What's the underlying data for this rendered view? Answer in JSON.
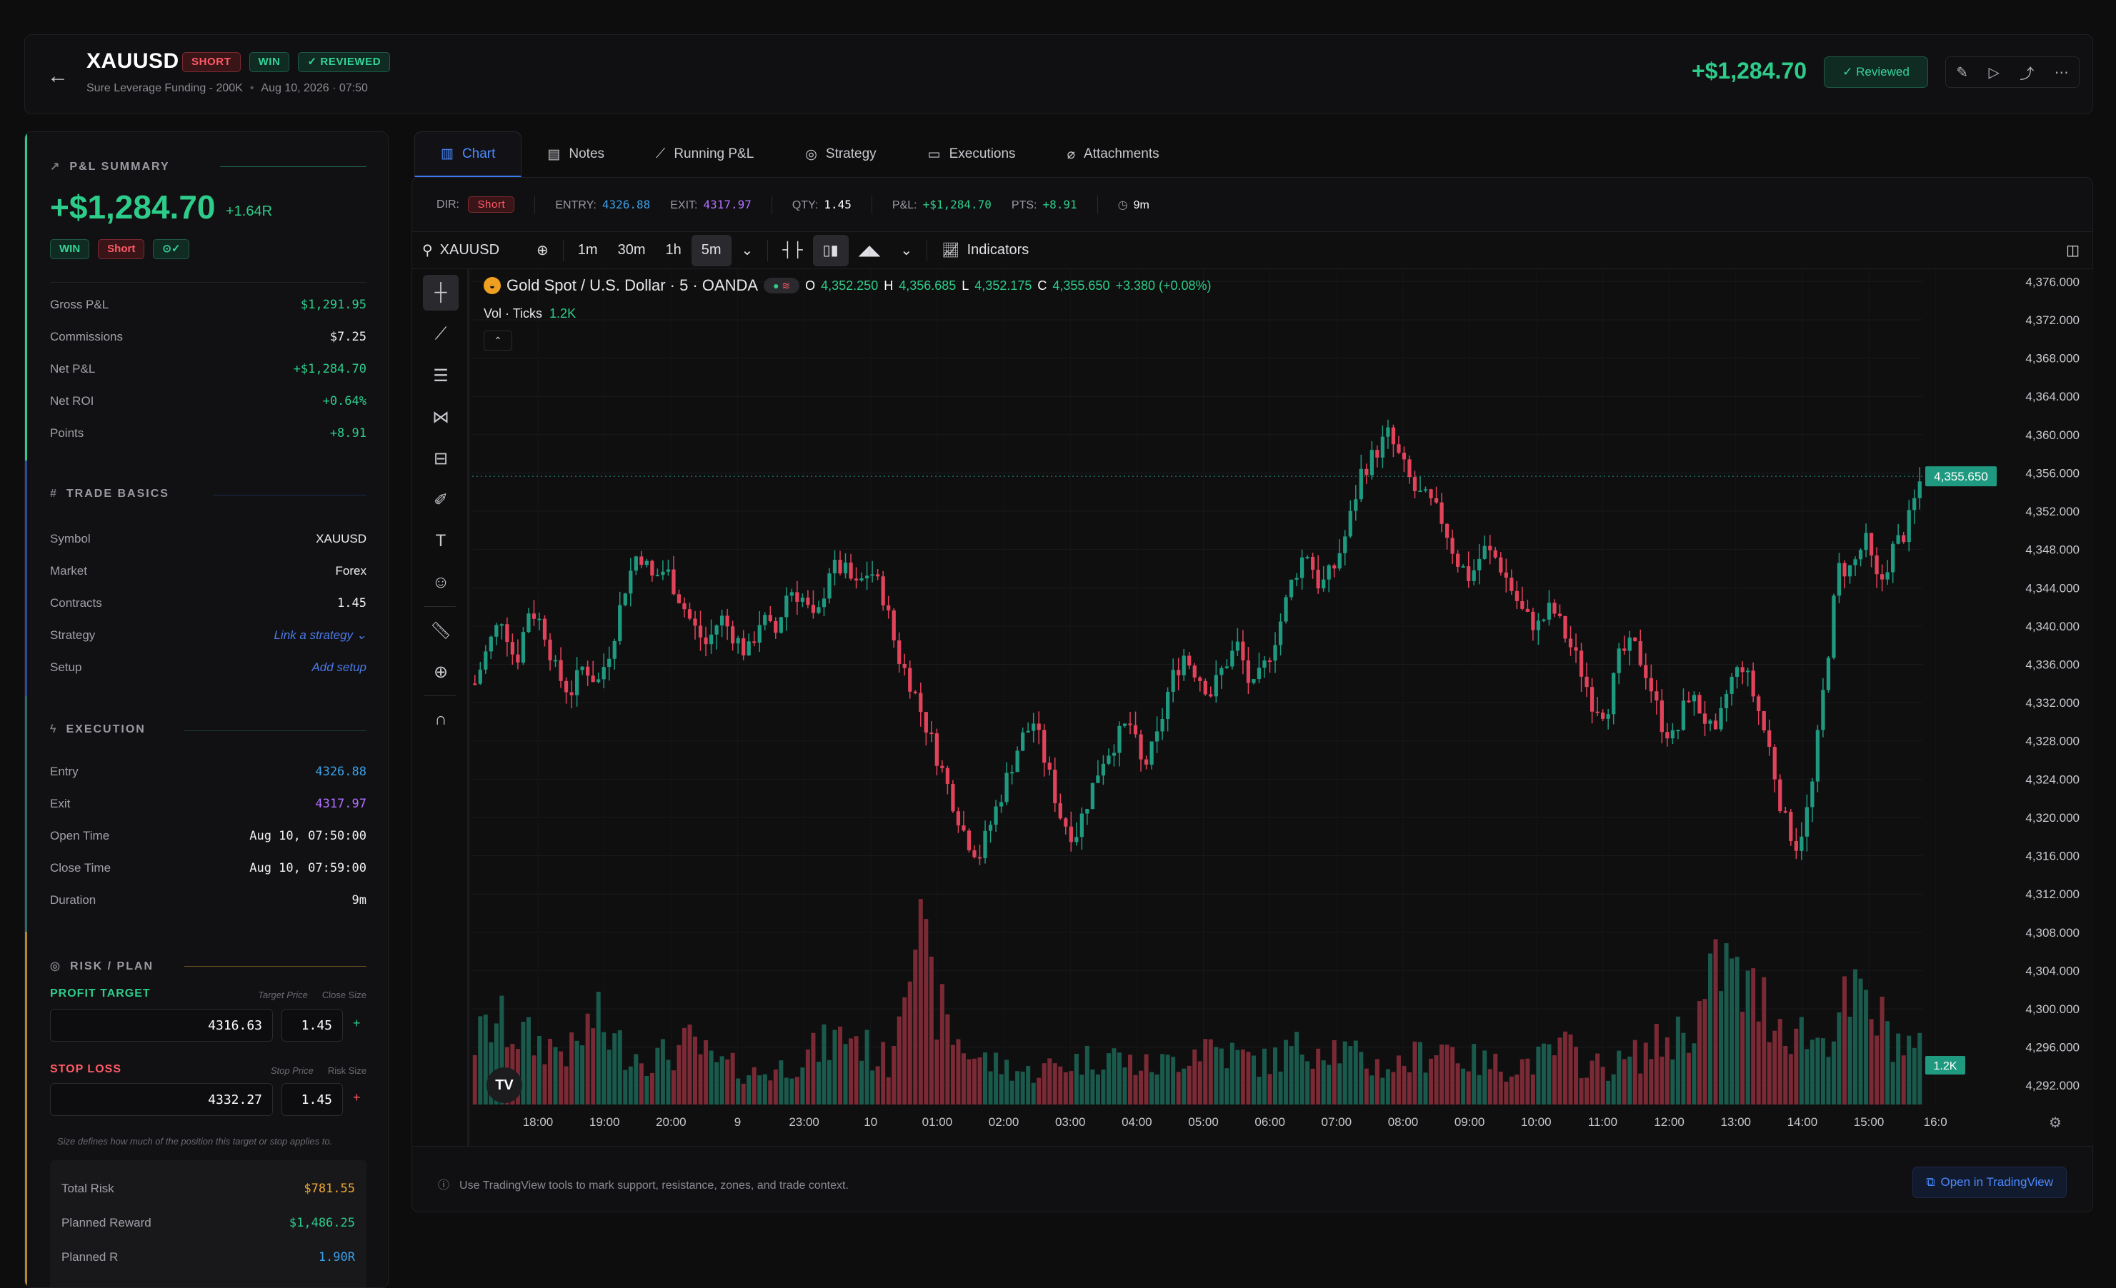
{
  "header": {
    "back_icon": "arrow-left-icon",
    "symbol": "XAUUSD",
    "badge_short": "SHORT",
    "badge_win": "WIN",
    "badge_reviewed": "REVIEWED",
    "account": "Sure Leverage Funding - 200K",
    "datetime": "Aug 10, 2026 · 07:50",
    "pnl": "+$1,284.70",
    "reviewed_button": "Reviewed"
  },
  "pnl_summary": {
    "title": "P&L SUMMARY",
    "amount": "+$1,284.70",
    "r_multiple": "+1.64R",
    "pill_win": "WIN",
    "pill_short": "Short",
    "rows": [
      {
        "k": "Gross P&L",
        "v": "$1,291.95"
      },
      {
        "k": "Commissions",
        "v": "$7.25"
      },
      {
        "k": "Net P&L",
        "v": "+$1,284.70"
      },
      {
        "k": "Net ROI",
        "v": "+0.64%"
      },
      {
        "k": "Points",
        "v": "+8.91"
      }
    ]
  },
  "trade_basics": {
    "title": "TRADE BASICS",
    "rows": [
      {
        "k": "Symbol",
        "v": "XAUUSD"
      },
      {
        "k": "Market",
        "v": "Forex"
      },
      {
        "k": "Contracts",
        "v": "1.45"
      },
      {
        "k": "Strategy",
        "v": "Link a strategy ⌄"
      },
      {
        "k": "Setup",
        "v": "Add setup"
      }
    ]
  },
  "execution": {
    "title": "EXECUTION",
    "rows": [
      {
        "k": "Entry",
        "v": "4326.88"
      },
      {
        "k": "Exit",
        "v": "4317.97"
      },
      {
        "k": "Open Time",
        "v": "Aug 10, 07:50:00"
      },
      {
        "k": "Close Time",
        "v": "Aug 10, 07:59:00"
      },
      {
        "k": "Duration",
        "v": "9m"
      }
    ]
  },
  "risk": {
    "title": "RISK / PLAN",
    "profit_label": "PROFIT TARGET",
    "profit_col1": "Target Price",
    "profit_col2": "Close Size",
    "profit_price": "4316.63",
    "profit_size": "1.45",
    "stop_label": "STOP LOSS",
    "stop_col1": "Stop Price",
    "stop_col2": "Risk Size",
    "stop_price": "4332.27",
    "stop_size": "1.45",
    "note": "Size defines how much of the position this target or stop applies to.",
    "summary": [
      {
        "k": "Total Risk",
        "v": "$781.55"
      },
      {
        "k": "Planned Reward",
        "v": "$1,486.25"
      },
      {
        "k": "Planned R",
        "v": "1.90R"
      }
    ]
  },
  "tabs": [
    "Chart",
    "Notes",
    "Running P&L",
    "Strategy",
    "Executions",
    "Attachments"
  ],
  "info_bar": {
    "dir_label": "DIR:",
    "dir": "Short",
    "entry_label": "ENTRY:",
    "entry": "4326.88",
    "exit_label": "EXIT:",
    "exit": "4317.97",
    "qty_label": "QTY:",
    "qty": "1.45",
    "pnl_label": "P&L:",
    "pnl": "+$1,284.70",
    "pts_label": "PTS:",
    "pts": "+8.91",
    "duration": "9m"
  },
  "toolbar": {
    "symbol": "XAUUSD",
    "intervals": [
      "1m",
      "30m",
      "1h",
      "5m"
    ],
    "indicators": "Indicators"
  },
  "chart_legend": {
    "title": "Gold Spot / U.S. Dollar · 5 · OANDA",
    "o": "4,352.250",
    "h": "4,356.685",
    "l": "4,352.175",
    "c": "4,355.650",
    "change": "+3.380 (+0.08%)",
    "vol_label": "Vol · Ticks",
    "vol_value": "1.2K"
  },
  "chart_data": {
    "type": "candlestick",
    "y_ticks": [
      "4,376.000",
      "4,372.000",
      "4,368.000",
      "4,364.000",
      "4,360.000",
      "4,356.000",
      "4,352.000",
      "4,348.000",
      "4,344.000",
      "4,340.000",
      "4,336.000",
      "4,332.000",
      "4,328.000",
      "4,324.000",
      "4,320.000",
      "4,316.000",
      "4,312.000",
      "4,308.000",
      "4,304.000",
      "4,300.000",
      "4,296.000",
      "4,292.000"
    ],
    "ylim": [
      4290,
      4377
    ],
    "x_ticks": [
      "18:00",
      "19:00",
      "20:00",
      "9",
      "23:00",
      "10",
      "01:00",
      "02:00",
      "03:00",
      "04:00",
      "05:00",
      "06:00",
      "07:00",
      "08:00",
      "09:00",
      "10:00",
      "11:00",
      "12:00",
      "13:00",
      "14:00",
      "15:00",
      "16:0"
    ],
    "last_price": "4,355.650",
    "last_volume": "1.2K",
    "price_path": [
      4334,
      4338,
      4341,
      4336,
      4342,
      4340,
      4335,
      4333,
      4336,
      4334,
      4338,
      4344,
      4348,
      4345,
      4346,
      4343,
      4340,
      4338,
      4341,
      4339,
      4337,
      4341,
      4339,
      4344,
      4343,
      4340,
      4346,
      4346,
      4344,
      4346,
      4343,
      4337,
      4334,
      4330,
      4326,
      4322,
      4318,
      4316,
      4320,
      4324,
      4328,
      4330,
      4325,
      4320,
      4318,
      4322,
      4326,
      4328,
      4330,
      4325,
      4328,
      4334,
      4337,
      4335,
      4333,
      4336,
      4338,
      4333,
      4336,
      4340,
      4345,
      4348,
      4344,
      4346,
      4350,
      4356,
      4358,
      4360,
      4357,
      4354,
      4353,
      4351,
      4347,
      4345,
      4348,
      4347,
      4344,
      4341,
      4340,
      4342,
      4339,
      4336,
      4332,
      4331,
      4337,
      4338,
      4335,
      4330,
      4328,
      4333,
      4331,
      4328,
      4334,
      4336,
      4332,
      4327,
      4320,
      4317,
      4322,
      4334,
      4346,
      4346,
      4349,
      4344,
      4348,
      4350,
      4355
    ],
    "volume_profile": [
      0.3,
      0.4,
      0.35,
      0.3,
      0.28,
      0.25,
      0.42,
      0.3,
      0.25,
      0.22,
      0.25,
      0.3,
      0.2,
      0.18,
      0.15,
      0.16,
      0.2,
      0.25,
      0.3,
      0.35,
      0.25,
      0.2,
      1.0,
      0.55,
      0.35,
      0.25,
      0.2,
      0.18,
      0.15,
      0.18,
      0.2,
      0.22,
      0.25,
      0.2,
      0.18,
      0.2,
      0.25,
      0.3,
      0.25,
      0.22,
      0.2,
      0.25,
      0.28,
      0.3,
      0.25,
      0.2,
      0.18,
      0.2,
      0.25,
      0.3,
      0.22,
      0.2,
      0.18,
      0.2,
      0.22,
      0.28,
      0.2,
      0.18,
      0.2,
      0.25,
      0.3,
      0.35,
      0.45,
      0.7,
      0.55,
      0.5,
      0.4,
      0.35,
      0.3,
      0.45,
      0.5,
      0.4,
      0.3,
      0.25
    ]
  },
  "footer": {
    "tip": "Use TradingView tools to mark support, resistance, zones, and trade context.",
    "open_button": "Open in TradingView"
  },
  "colors": {
    "up": "#1f9a80",
    "down": "#e0435a",
    "accent": "#3a7aef",
    "profit": "#2ecc8a"
  }
}
